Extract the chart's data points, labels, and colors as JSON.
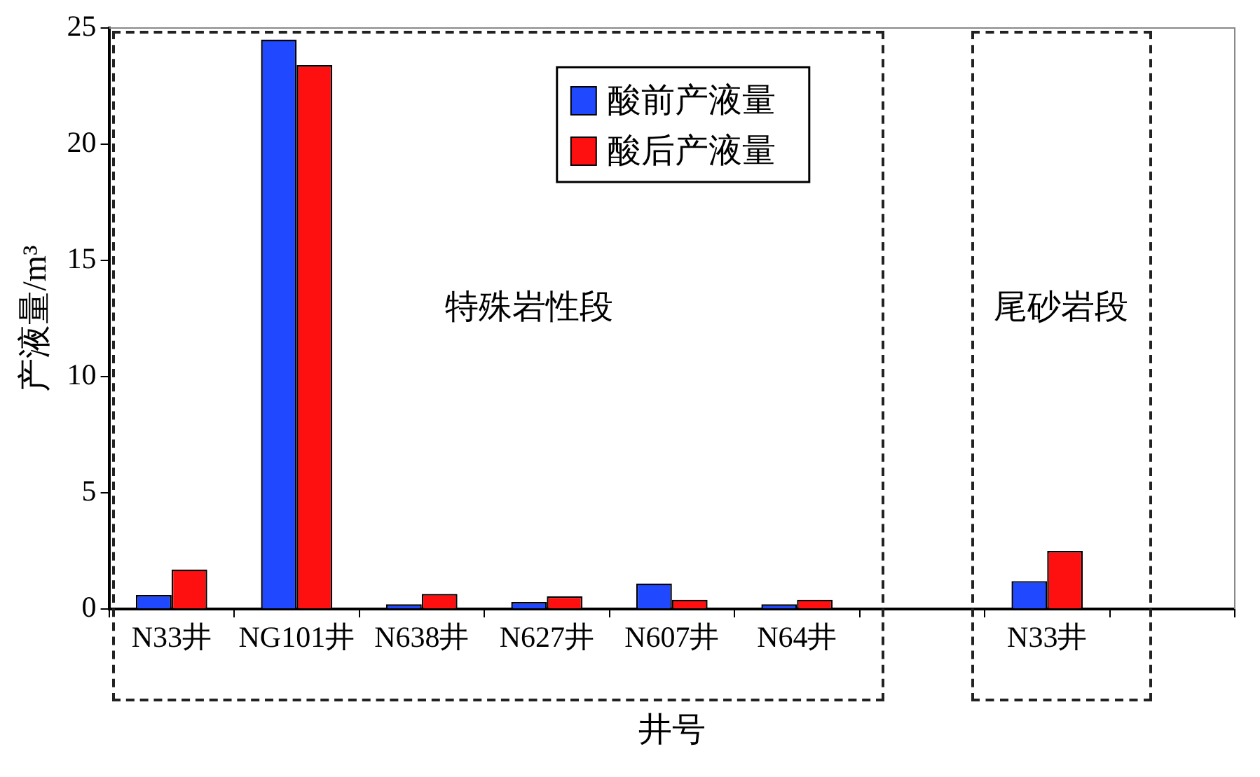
{
  "chart_data": {
    "type": "bar",
    "xlabel": "井号",
    "ylabel": "产液量/m³",
    "categories": [
      "N33井",
      "NG101井",
      "N638井",
      "N627井",
      "N607井",
      "N64井",
      null,
      "N33井",
      null
    ],
    "series": [
      {
        "name": "酸前产液量",
        "color": "#1f48ff",
        "values": [
          0.6,
          24.5,
          0.2,
          0.3,
          1.1,
          0.2,
          null,
          1.2,
          null
        ]
      },
      {
        "name": "酸后产液量",
        "color": "#ff1010",
        "values": [
          1.7,
          23.4,
          0.65,
          0.55,
          0.4,
          0.4,
          null,
          2.5,
          null
        ]
      }
    ],
    "ylim": [
      0,
      25
    ],
    "yticks": [
      0,
      5,
      10,
      15,
      20,
      25
    ],
    "grid": false,
    "legend": "top",
    "annotations": [
      "特殊岩性段",
      "尾砂岩段"
    ]
  }
}
